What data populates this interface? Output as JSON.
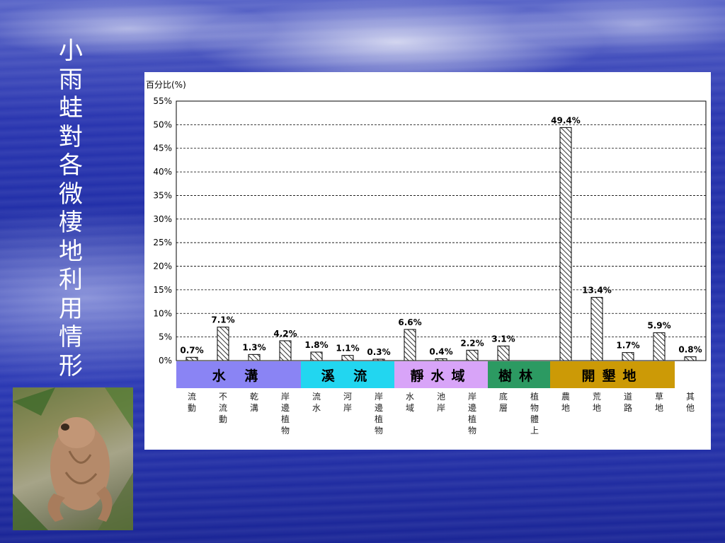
{
  "slide": {
    "title": "小雨蛙對各微棲地利用情形"
  },
  "photo": {
    "icon": "frog-photo-icon"
  },
  "chart_data": {
    "type": "bar",
    "ylabel": "百分比(%)",
    "ylim": [
      0,
      55
    ],
    "yticks": [
      "0%",
      "5%",
      "10%",
      "15%",
      "20%",
      "25%",
      "30%",
      "35%",
      "40%",
      "45%",
      "50%",
      "55%"
    ],
    "grid": true,
    "bar_pattern": "diagonal-hatch",
    "categories": [
      "流動",
      "不流動",
      "乾溝",
      "岸邊植物",
      "流水",
      "河岸",
      "岸邊植物",
      "水域",
      "池岸",
      "岸邊植物",
      "底層",
      "植物體上",
      "農地",
      "荒地",
      "道路",
      "草地",
      "其他"
    ],
    "values": [
      0.7,
      7.1,
      1.3,
      4.2,
      1.8,
      1.1,
      0.3,
      6.6,
      0.4,
      2.2,
      3.1,
      null,
      49.4,
      13.4,
      1.7,
      5.9,
      0.8
    ],
    "data_labels": [
      "0.7%",
      "7.1%",
      "1.3%",
      "4.2%",
      "1.8%",
      "1.1%",
      "0.3%",
      "6.6%",
      "0.4%",
      "2.2%",
      "3.1%",
      "",
      "49.4%",
      "13.4%",
      "1.7%",
      "5.9%",
      "0.8%"
    ],
    "groups": [
      {
        "label": "水 溝",
        "start": 0,
        "end": 3,
        "color": "#8a84f4"
      },
      {
        "label": "溪 流",
        "start": 4,
        "end": 6,
        "color": "#22d6f0"
      },
      {
        "label": "靜水域",
        "start": 7,
        "end": 9,
        "color": "#d8a4f8"
      },
      {
        "label": "樹林",
        "start": 10,
        "end": 11,
        "color": "#2c9a62"
      },
      {
        "label": "開墾地",
        "start": 12,
        "end": 15,
        "color": "#cc9a06"
      }
    ]
  }
}
